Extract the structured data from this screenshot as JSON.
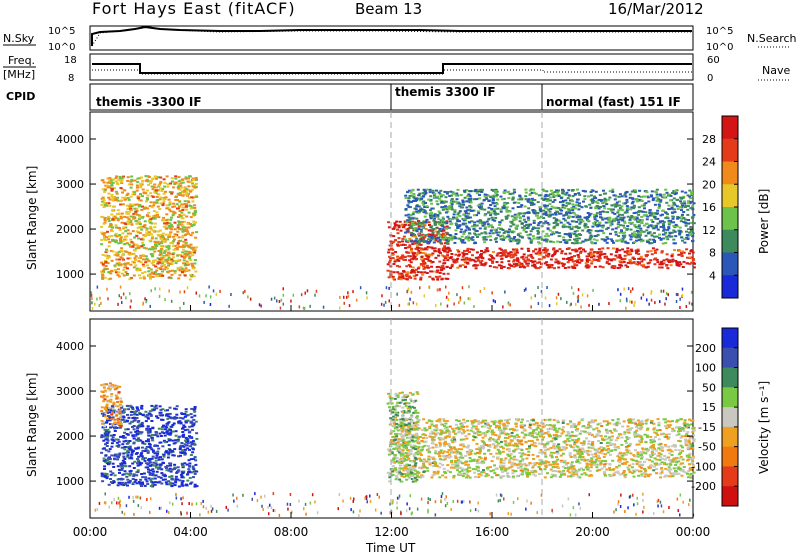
{
  "header": {
    "title": "Fort Hays East (fitACF)",
    "beam": "Beam 13",
    "date": "16/Mar/2012"
  },
  "top_panels": {
    "nsky_label": "N.Sky",
    "nsearch_label": "N.Search",
    "nsky_ticks": [
      "10^5",
      "10^0"
    ],
    "nsearch_ticks": [
      "10^5",
      "10^0"
    ],
    "freq_label_line1": "Freq.",
    "freq_label_line2": "[MHz]",
    "freq_ticks": [
      "18",
      "8"
    ],
    "nave_label": "Nave",
    "nave_ticks": [
      "60",
      "0"
    ],
    "cpid_label": "CPID",
    "cpid_segments": [
      {
        "label": "themis -3300 IF",
        "start_hour": 0
      },
      {
        "label": "themis 3300 IF",
        "start_hour": 12
      },
      {
        "label": "normal (fast) 151 IF",
        "start_hour": 18
      }
    ]
  },
  "power_panel": {
    "ylabel": "Slant Range [km]",
    "yticks": [
      "4000",
      "3000",
      "2000",
      "1000"
    ],
    "colorbar_label": "Power [dB]",
    "colorbar_ticks": [
      "28",
      "24",
      "20",
      "16",
      "12",
      "8",
      "4"
    ]
  },
  "velocity_panel": {
    "ylabel": "Slant Range [km]",
    "yticks": [
      "4000",
      "3000",
      "2000",
      "1000"
    ],
    "colorbar_label": "Velocity [m s⁻¹]",
    "colorbar_ticks": [
      "200",
      "100",
      "50",
      "15",
      "-15",
      "-50",
      "-100",
      "-200"
    ]
  },
  "x_axis": {
    "label": "Time UT",
    "ticks": [
      "00:00",
      "04:00",
      "08:00",
      "12:00",
      "16:00",
      "20:00",
      "00:00"
    ]
  },
  "colors": {
    "power_scale": [
      "#1a2ad8",
      "#2a57b8",
      "#3d8a5c",
      "#6cc24a",
      "#e8c828",
      "#f08a1a",
      "#e53b1a",
      "#d41515"
    ],
    "velocity_scale": [
      "#1a2ad8",
      "#3a4fb0",
      "#3d8a5c",
      "#7ac943",
      "#c8c8c0",
      "#f0a020",
      "#f07a10",
      "#e53b1a",
      "#d01010"
    ]
  },
  "chart_data": {
    "type": "heatmap",
    "title": "Fort Hays East (fitACF)",
    "xlabel": "Time UT",
    "x_range_hours": [
      0,
      24
    ],
    "panels": [
      {
        "name": "Power",
        "ylabel": "Slant Range [km]",
        "y_range_km": [
          180,
          4600
        ],
        "colorbar": "Power [dB]",
        "value_range": [
          0,
          30
        ],
        "regions": [
          {
            "t": [
              0.4,
              4.2
            ],
            "r": [
              900,
              3200
            ],
            "value": 18
          },
          {
            "t": [
              11.8,
              14.2
            ],
            "r": [
              900,
              2200
            ],
            "value": 26
          },
          {
            "t": [
              14.0,
              24.0
            ],
            "r": [
              1150,
              1600
            ],
            "value": 27
          },
          {
            "t": [
              12.5,
              24.0
            ],
            "r": [
              1700,
              2900
            ],
            "value": 9
          }
        ]
      },
      {
        "name": "Velocity",
        "ylabel": "Slant Range [km]",
        "y_range_km": [
          180,
          4600
        ],
        "colorbar": "Velocity [m s⁻¹]",
        "value_range": [
          -250,
          250
        ],
        "regions": [
          {
            "t": [
              0.4,
              4.2
            ],
            "r": [
              900,
              2700
            ],
            "value": 200
          },
          {
            "t": [
              0.4,
              1.2
            ],
            "r": [
              2200,
              3200
            ],
            "value": -60
          },
          {
            "t": [
              12.0,
              24.0
            ],
            "r": [
              1100,
              2400
            ],
            "value": 0
          },
          {
            "t": [
              11.8,
              13.0
            ],
            "r": [
              1000,
              3000
            ],
            "value": 40
          }
        ]
      }
    ]
  }
}
